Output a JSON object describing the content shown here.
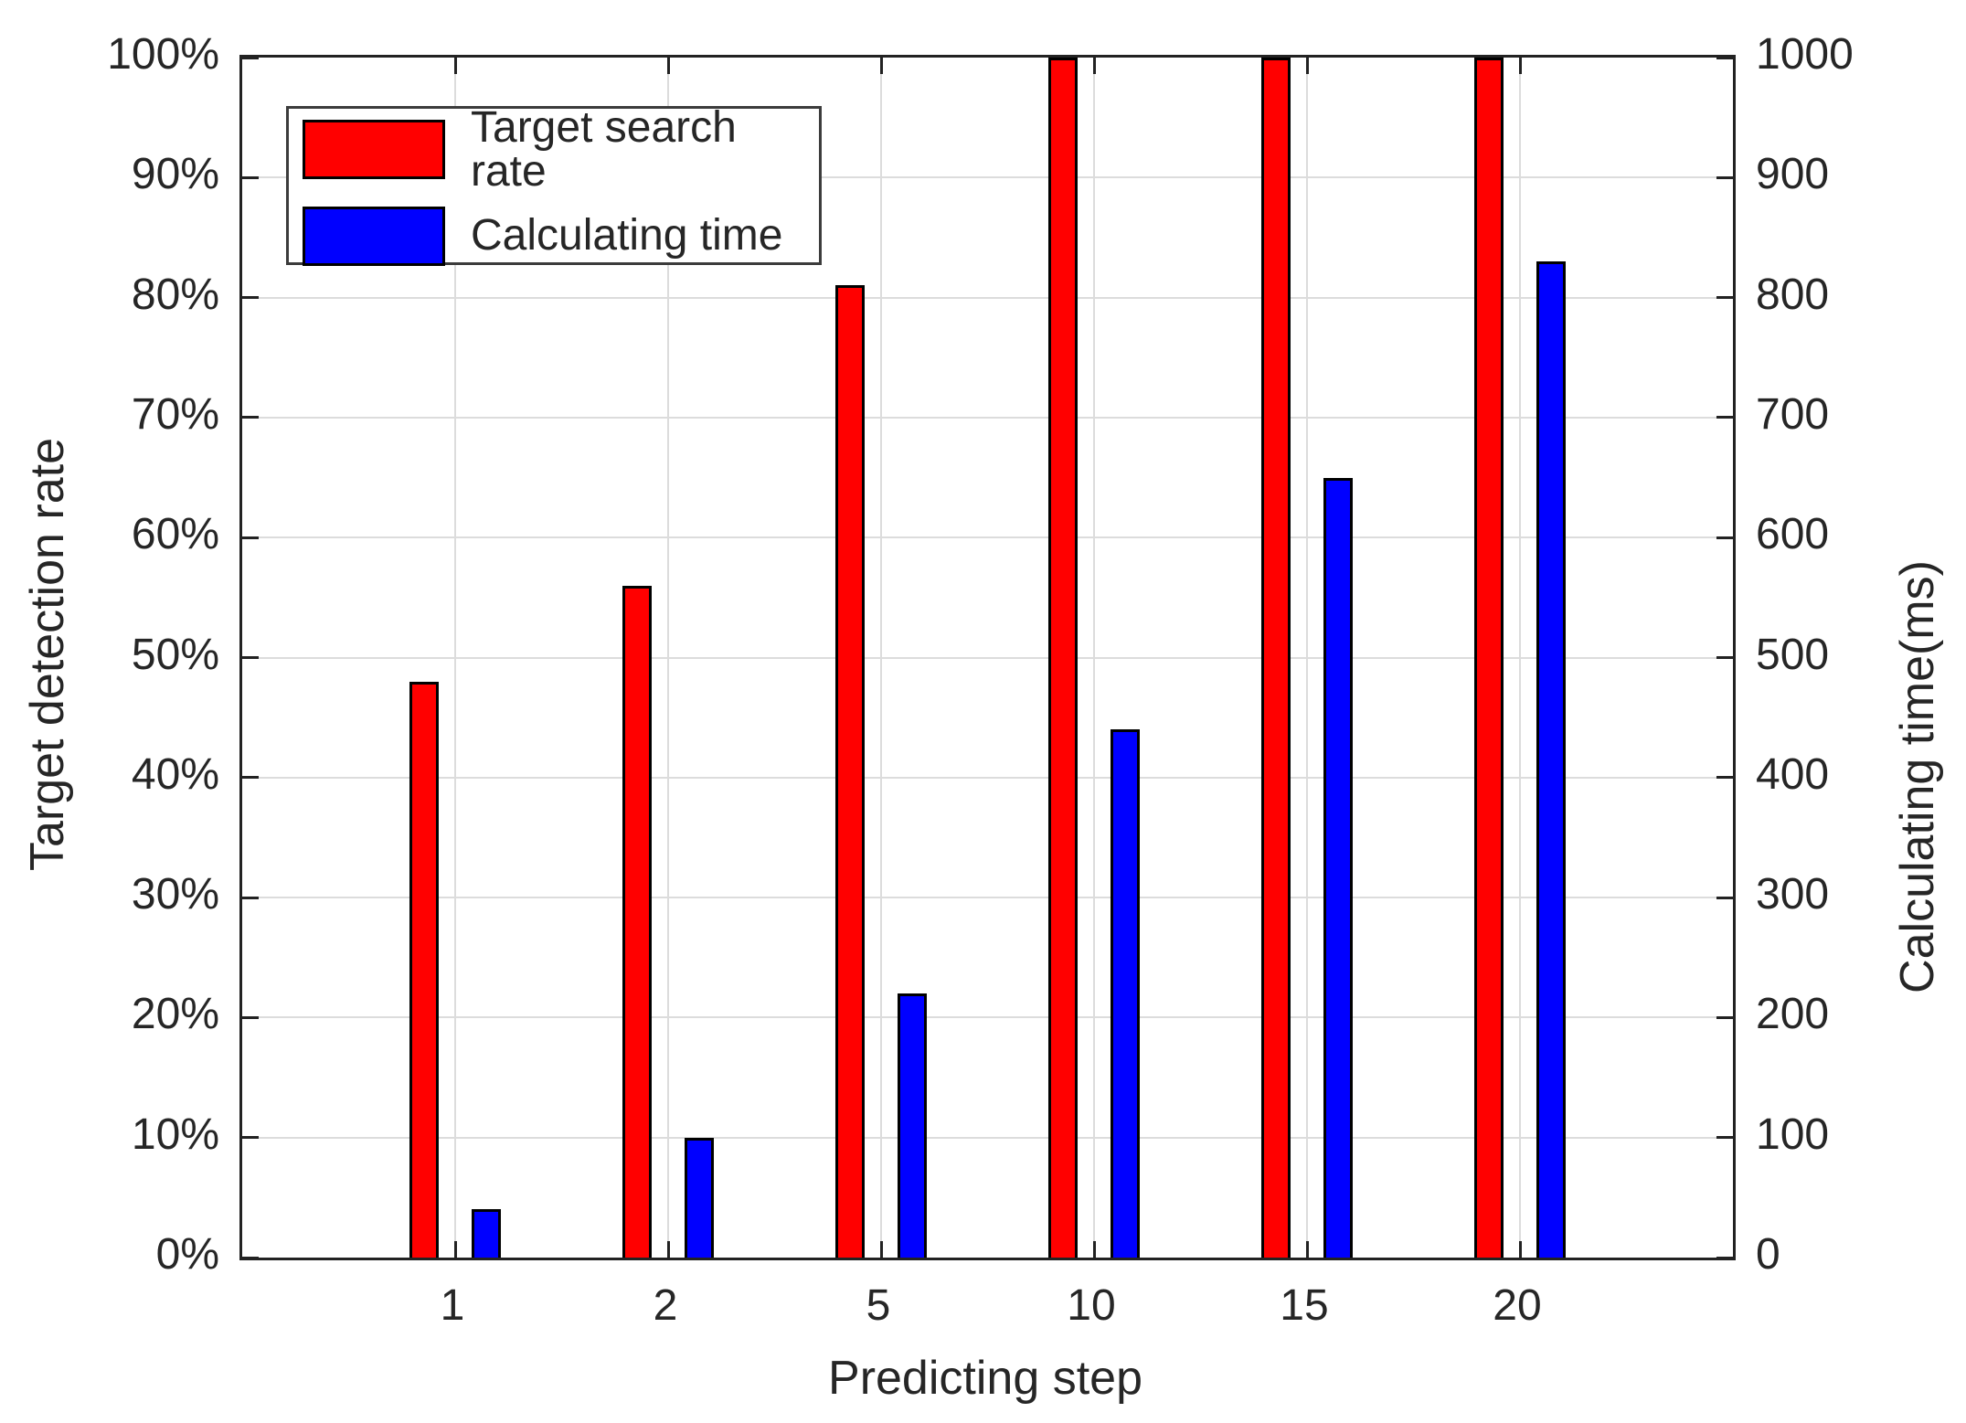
{
  "chart_data": {
    "type": "bar",
    "subtype": "grouped-dual-axis",
    "title": "",
    "categories": [
      "1",
      "2",
      "5",
      "10",
      "15",
      "20"
    ],
    "xlabel": "Predicting step",
    "left_axis": {
      "label": "Target detection rate",
      "min": 0,
      "max": 100,
      "tick_labels": [
        "0%",
        "10%",
        "20%",
        "30%",
        "40%",
        "50%",
        "60%",
        "70%",
        "80%",
        "90%",
        "100%"
      ]
    },
    "right_axis": {
      "label": "Calculating time(ms)",
      "min": 0,
      "max": 1000,
      "tick_labels": [
        "0",
        "100",
        "200",
        "300",
        "400",
        "500",
        "600",
        "700",
        "800",
        "900",
        "1000"
      ]
    },
    "series": [
      {
        "name": "Target search rate",
        "axis": "left",
        "unit": "%",
        "color": "#ff0000",
        "values": [
          48,
          56,
          81,
          100,
          100,
          100
        ]
      },
      {
        "name": "Calculating time",
        "axis": "right",
        "unit": "ms",
        "color": "#0000ff",
        "values": [
          40,
          100,
          220,
          440,
          650,
          830
        ]
      }
    ],
    "legend": {
      "position": "top-left",
      "entries": [
        "Target search rate",
        "Calculating time"
      ]
    },
    "grid": true,
    "bar_border_color": "#000000",
    "colors": {
      "target_search_rate": "#ff0000",
      "calculating_time": "#0000ff",
      "grid": "#dcdcdc",
      "axis": "#222222",
      "text": "#262626",
      "background": "#ffffff"
    }
  }
}
